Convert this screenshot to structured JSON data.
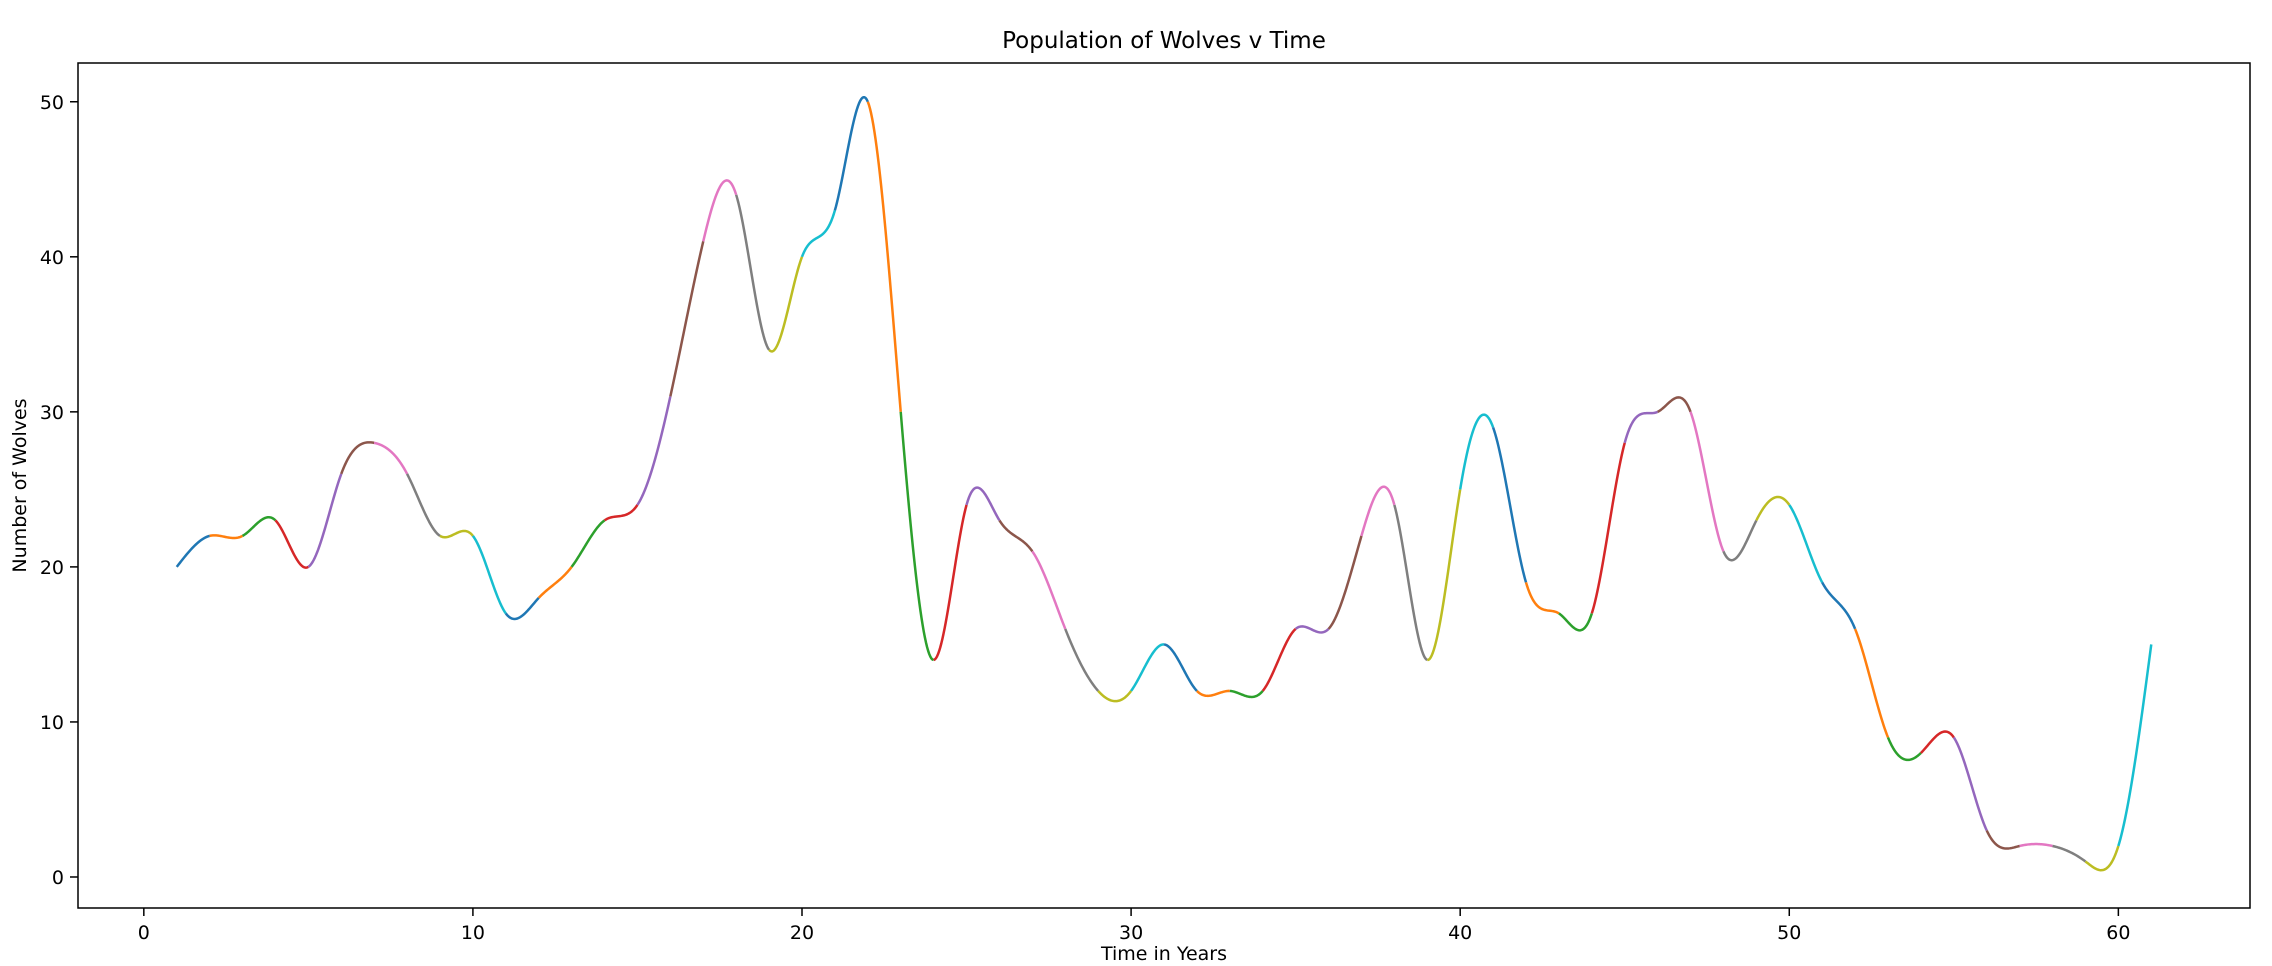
{
  "chart_data": {
    "type": "line",
    "title": "Population of Wolves v Time",
    "xlabel": "Time in Years",
    "ylabel": "Number of Wolves",
    "xlim": [
      -2,
      64
    ],
    "ylim": [
      -2,
      52.5
    ],
    "xticks": [
      0,
      10,
      20,
      30,
      40,
      50,
      60
    ],
    "yticks": [
      0,
      10,
      20,
      30,
      40,
      50
    ],
    "grid": false,
    "legend": "none",
    "x": [
      1,
      2,
      3,
      4,
      5,
      6,
      7,
      8,
      9,
      10,
      11,
      12,
      13,
      14,
      15,
      16,
      17,
      18,
      19,
      20,
      21,
      22,
      23,
      24,
      25,
      26,
      27,
      28,
      29,
      30,
      31,
      32,
      33,
      34,
      35,
      36,
      37,
      38,
      39,
      40,
      41,
      42,
      43,
      44,
      45,
      46,
      47,
      48,
      49,
      50,
      51,
      52,
      53,
      54,
      55,
      56,
      57,
      58,
      59,
      60,
      61
    ],
    "values": [
      20,
      22,
      22,
      23,
      20,
      26,
      28,
      26,
      22,
      22,
      17,
      18,
      20,
      23,
      24,
      31,
      41,
      44,
      34,
      40,
      43,
      50,
      30,
      14,
      24,
      23,
      21,
      16,
      12,
      12,
      15,
      12,
      12,
      12,
      16,
      16,
      22,
      24,
      14,
      25,
      29,
      19,
      17,
      17,
      28,
      30,
      30,
      21,
      23,
      24,
      19,
      16,
      9,
      8,
      9,
      3,
      2,
      2,
      1,
      2,
      15
    ],
    "segment_colors": [
      "#1f77b4",
      "#ff7f0e",
      "#2ca02c",
      "#d62728",
      "#9467bd",
      "#8c564b",
      "#e377c2",
      "#7f7f7f",
      "#bcbd22",
      "#17becf"
    ]
  }
}
